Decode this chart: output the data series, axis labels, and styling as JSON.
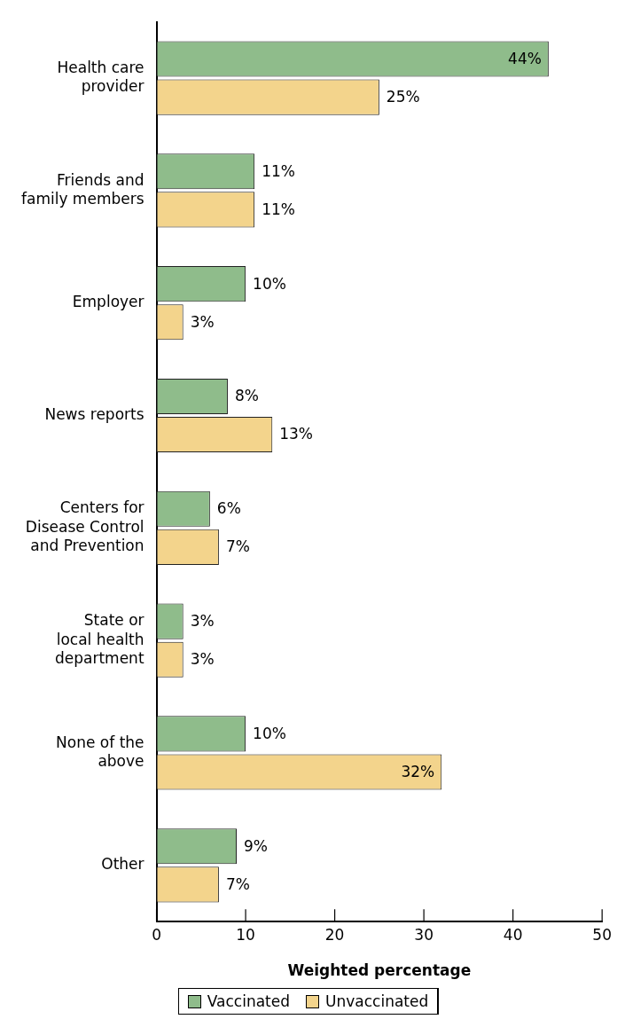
{
  "chart_data": {
    "type": "bar",
    "orientation": "horizontal",
    "xlabel": "Weighted percentage",
    "categories": [
      "Health care\nprovider",
      "Friends and\nfamily members",
      "Employer",
      "News reports",
      "Centers for\nDisease Control\nand Prevention",
      "State or\nlocal health\ndepartment",
      "None of the\nabove",
      "Other"
    ],
    "series": [
      {
        "name": "Vaccinated",
        "color": "#8fbc8b",
        "values": [
          44,
          11,
          10,
          8,
          6,
          3,
          10,
          9
        ],
        "value_labels": [
          "44%",
          "11%",
          "10%",
          "8%",
          "6%",
          "3%",
          "10%",
          "9%"
        ]
      },
      {
        "name": "Unvaccinated",
        "color": "#f3d48c",
        "values": [
          25,
          11,
          3,
          13,
          7,
          3,
          32,
          7
        ],
        "value_labels": [
          "25%",
          "11%",
          "3%",
          "13%",
          "7%",
          "3%",
          "32%",
          "7%"
        ]
      }
    ],
    "xlim": [
      0,
      50
    ],
    "xticks": [
      0,
      10,
      20,
      30,
      40,
      50
    ],
    "grid": false,
    "legend": "bottom"
  }
}
